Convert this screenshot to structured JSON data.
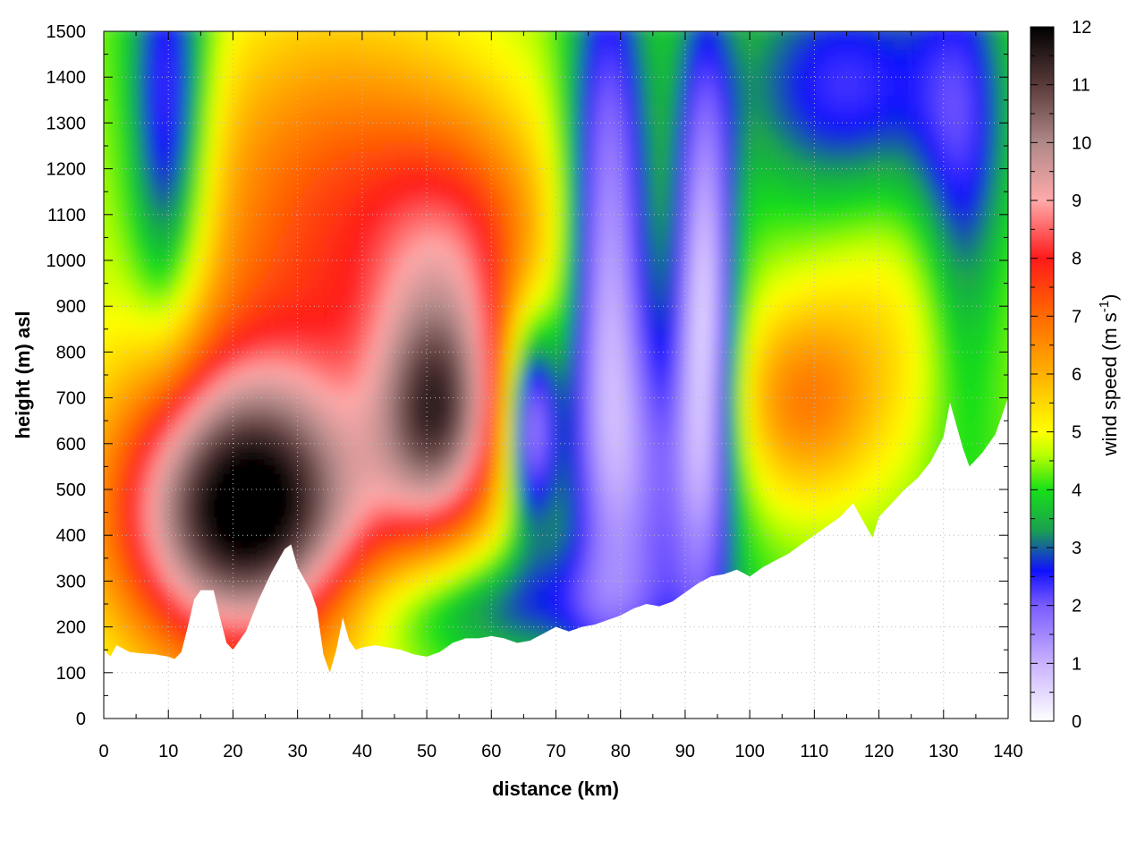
{
  "chart_data": {
    "type": "heatmap",
    "title": "",
    "xlabel": "distance (km)",
    "ylabel": "height (m) asl",
    "colorbar_label": "wind speed (m s",
    "colorbar_label_sup": "-1",
    "colorbar_label_end": ")",
    "xlim": [
      0,
      140
    ],
    "ylim": [
      0,
      1500
    ],
    "zlim": [
      0,
      12
    ],
    "xticks": [
      0,
      10,
      20,
      30,
      40,
      50,
      60,
      70,
      80,
      90,
      100,
      110,
      120,
      130,
      140
    ],
    "yticks": [
      0,
      100,
      200,
      300,
      400,
      500,
      600,
      700,
      800,
      900,
      1000,
      1100,
      1200,
      1300,
      1400,
      1500
    ],
    "zticks": [
      0,
      1,
      2,
      3,
      4,
      5,
      6,
      7,
      8,
      9,
      10,
      11,
      12
    ],
    "grid": true,
    "terrain_profile": {
      "x": [
        0,
        1,
        2,
        4,
        6,
        8,
        10,
        11,
        12,
        13,
        14,
        15,
        17,
        18,
        19,
        20,
        22,
        24,
        26,
        28,
        29,
        30,
        32,
        33,
        34,
        35,
        36,
        37,
        38,
        39,
        40,
        42,
        44,
        46,
        48,
        50,
        52,
        54,
        56,
        58,
        60,
        62,
        64,
        66,
        68,
        70,
        72,
        74,
        76,
        78,
        80,
        82,
        84,
        86,
        88,
        90,
        92,
        94,
        96,
        98,
        100,
        102,
        104,
        106,
        108,
        110,
        112,
        114,
        116,
        118,
        119,
        120,
        122,
        124,
        126,
        128,
        130,
        131,
        132,
        133,
        134,
        136,
        138,
        140
      ],
      "height": [
        150,
        135,
        160,
        145,
        142,
        140,
        135,
        130,
        145,
        200,
        260,
        280,
        280,
        220,
        165,
        150,
        190,
        260,
        320,
        370,
        380,
        330,
        280,
        240,
        140,
        100,
        150,
        220,
        170,
        150,
        155,
        160,
        155,
        150,
        140,
        135,
        145,
        165,
        175,
        175,
        180,
        175,
        165,
        170,
        185,
        200,
        190,
        200,
        205,
        215,
        225,
        240,
        250,
        245,
        255,
        275,
        295,
        310,
        315,
        325,
        310,
        330,
        345,
        360,
        380,
        400,
        420,
        440,
        470,
        420,
        395,
        440,
        470,
        500,
        525,
        560,
        615,
        690,
        640,
        590,
        550,
        580,
        620,
        700
      ]
    },
    "wind_speed_features": [
      {
        "x_range": [
          5,
          38
        ],
        "height_range": [
          200,
          700
        ],
        "wind_speed": 12
      },
      {
        "x_range": [
          5,
          15
        ],
        "height_range": [
          1000,
          1500
        ],
        "wind_speed": 2
      },
      {
        "x_range": [
          45,
          60
        ],
        "height_range": [
          450,
          850
        ],
        "wind_speed": 10
      },
      {
        "x_range": [
          20,
          60
        ],
        "height_range": [
          900,
          1500
        ],
        "wind_speed": 6
      },
      {
        "x_range": [
          63,
          100
        ],
        "height_range": [
          200,
          1200
        ],
        "wind_speed": 1
      },
      {
        "x_range": [
          102,
          115
        ],
        "height_range": [
          600,
          800
        ],
        "wind_speed": 7
      },
      {
        "x_range": [
          105,
          130
        ],
        "height_range": [
          500,
          1100
        ],
        "wind_speed": 4
      },
      {
        "x_range": [
          110,
          130
        ],
        "height_range": [
          1100,
          1500
        ],
        "wind_speed": 2
      }
    ]
  }
}
